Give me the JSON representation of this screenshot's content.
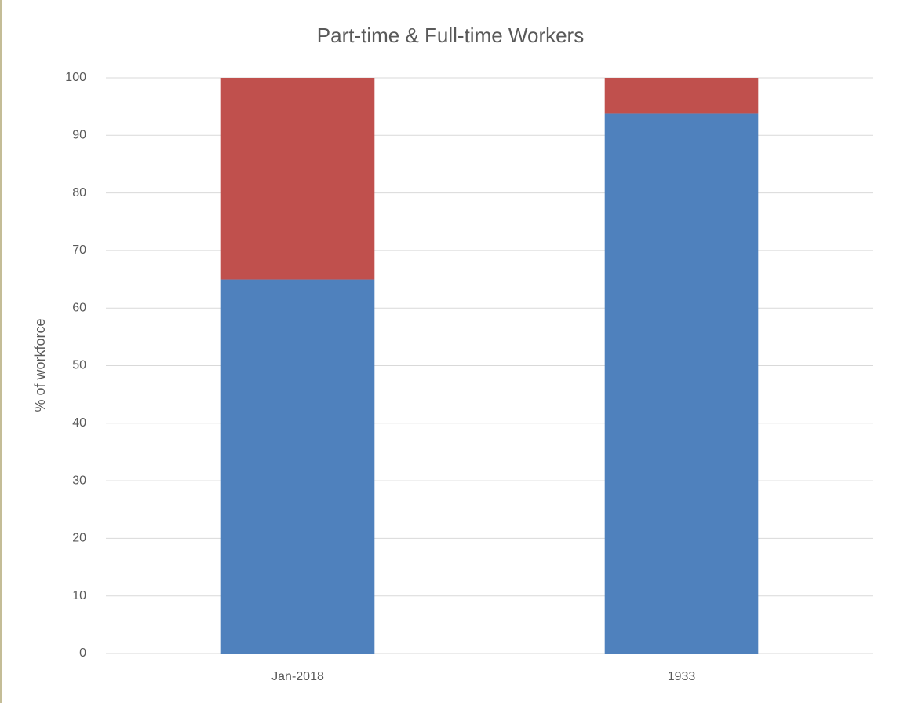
{
  "chart_data": {
    "type": "stacked_bar",
    "title": "Part-time & Full-time Workers",
    "y_label": "% of workforce",
    "categories": [
      "Jan-2018",
      "1933"
    ],
    "series": [
      {
        "color": "#4f81bd",
        "values": [
          65,
          93.8
        ]
      },
      {
        "color": "#c0504d",
        "values": [
          35,
          6.2
        ]
      }
    ],
    "ylim": [
      0,
      100
    ],
    "yticks": [
      0,
      10,
      20,
      30,
      40,
      50,
      60,
      70,
      80,
      90,
      100
    ],
    "grid": true
  }
}
